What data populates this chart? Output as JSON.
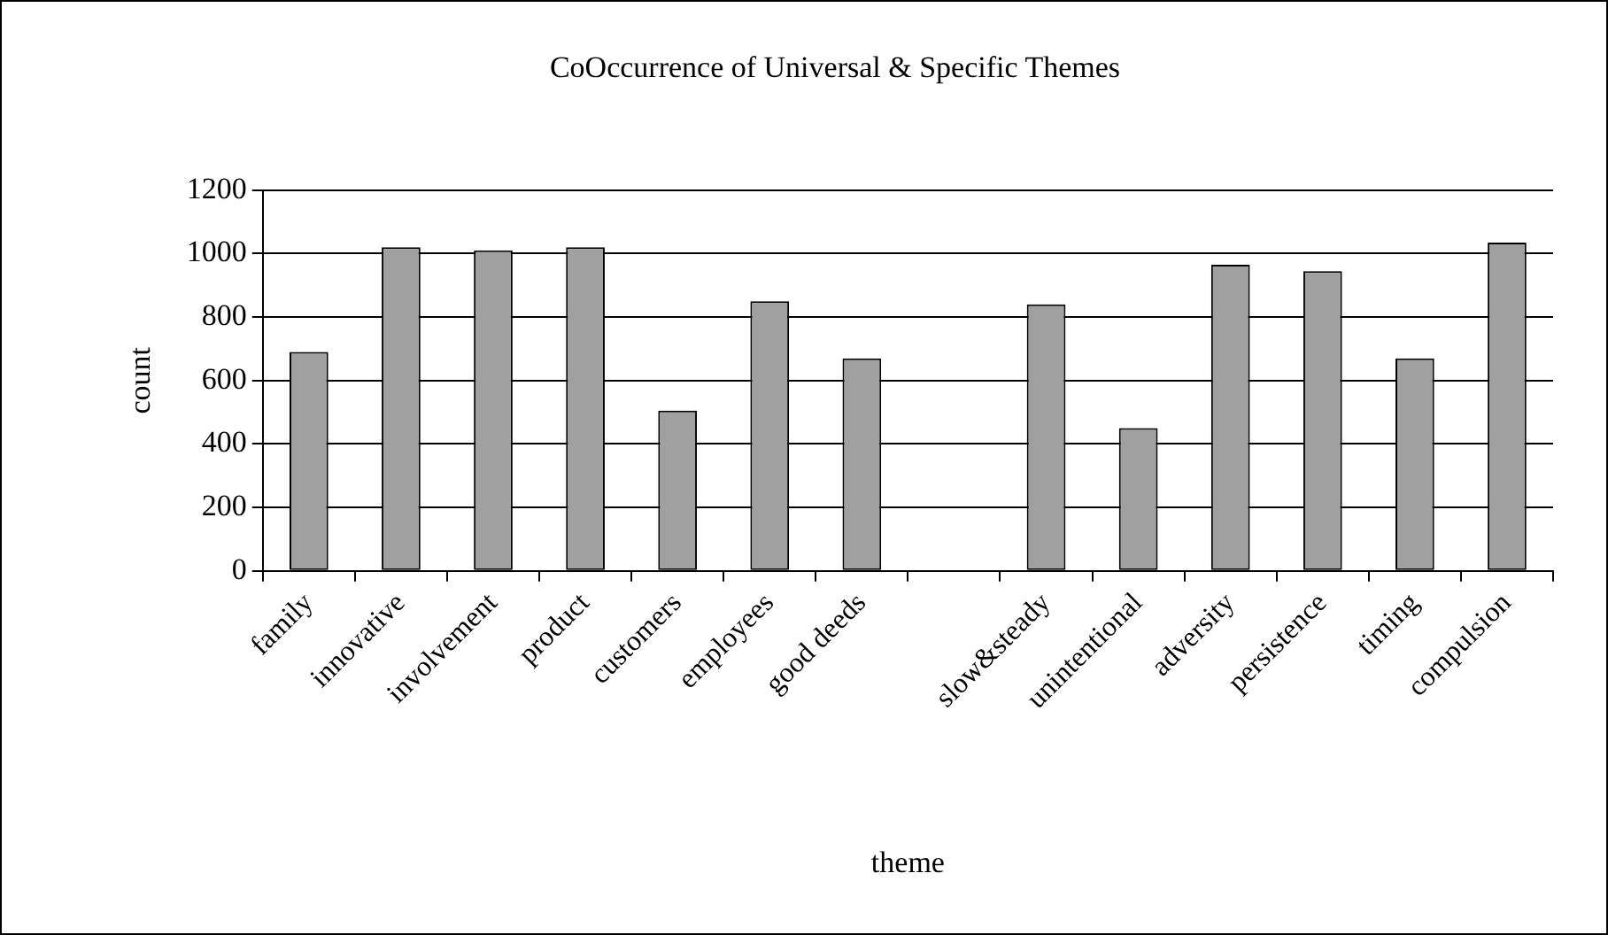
{
  "chart_data": {
    "type": "bar",
    "title": "CoOccurrence of Universal & Specific Themes",
    "xlabel": "theme",
    "ylabel": "count",
    "categories": [
      "family",
      "innovative",
      "involvement",
      "product",
      "customers",
      "employees",
      "good deeds",
      null,
      "slow&steady",
      "unintentional",
      "adversity",
      "persistence",
      "timing",
      "compulsion"
    ],
    "values": [
      690,
      1020,
      1010,
      1020,
      505,
      850,
      670,
      null,
      840,
      450,
      965,
      945,
      670,
      1035
    ],
    "color": "#a0a0a0",
    "ylim": [
      0,
      1200
    ],
    "yticks": [
      0,
      200,
      400,
      600,
      800,
      1000,
      1200
    ],
    "grid": "y",
    "legend": false
  }
}
